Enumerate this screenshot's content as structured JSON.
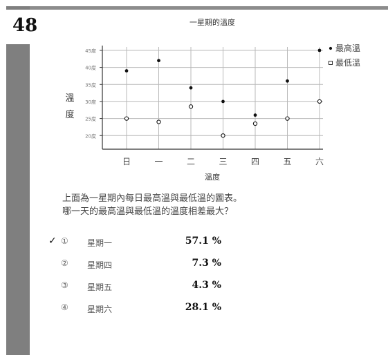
{
  "question_number": "48",
  "side_caption": "",
  "chart_data": {
    "type": "scatter",
    "title": "一星期的溫度",
    "xlabel": "溫度",
    "ylabel": "溫度",
    "categories": [
      "日",
      "一",
      "二",
      "三",
      "四",
      "五",
      "六"
    ],
    "y_ticks": [
      "45度",
      "40度",
      "35度",
      "30度",
      "25度",
      "20度"
    ],
    "y_tick_values": [
      45,
      40,
      35,
      30,
      25,
      20
    ],
    "ylim": [
      16,
      46
    ],
    "grid": true,
    "legend_position": "right",
    "series": [
      {
        "name": "最高溫",
        "marker": "filled",
        "values": [
          39,
          42,
          34,
          30,
          26,
          36,
          45
        ]
      },
      {
        "name": "最低溫",
        "marker": "open",
        "values": [
          25,
          24,
          28.5,
          20,
          23.5,
          25,
          30
        ]
      }
    ],
    "legend": [
      {
        "label": "最高溫",
        "symbol": "•"
      },
      {
        "label": "最低溫",
        "symbol": "▫"
      }
    ],
    "colors": {
      "axis": "#333333",
      "grid": "#b8b8b8",
      "marker": "#111111"
    }
  },
  "question": {
    "line1": "上面為一星期內每日最高溫與最低溫的圖表。",
    "line2": "哪一天的最高溫與最低溫的溫度相差最大？"
  },
  "options": [
    {
      "check": "✓",
      "marker": "①",
      "label": "星期一",
      "percent": "57.1 %"
    },
    {
      "check": "",
      "marker": "②",
      "label": "星期四",
      "percent": "7.3 %"
    },
    {
      "check": "",
      "marker": "③",
      "label": "星期五",
      "percent": "4.3 %"
    },
    {
      "check": "",
      "marker": "④",
      "label": "星期六",
      "percent": "28.1 %"
    }
  ]
}
